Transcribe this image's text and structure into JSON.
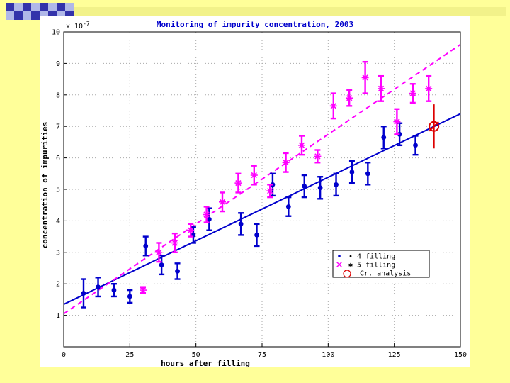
{
  "slide": {
    "background_color": "#ffff99",
    "decoration": "checkered-squares-bar"
  },
  "chart_data": {
    "type": "scatter",
    "title": "Monitoring of impurity concentration, 2003",
    "xlabel": "hours after filling",
    "ylabel": "concentration of impurities",
    "y_multiplier": "x 10^-7",
    "y_multiplier_base": "x 10",
    "y_multiplier_exp": "-7",
    "xlim": [
      0,
      150
    ],
    "ylim": [
      0,
      10
    ],
    "x_ticks": [
      "0",
      "25",
      "50",
      "75",
      "100",
      "125",
      "150"
    ],
    "y_ticks": [
      "1",
      "2",
      "3",
      "4",
      "5",
      "6",
      "7",
      "8",
      "9",
      "10"
    ],
    "grid": true,
    "legend_position": "lower-right",
    "series": [
      {
        "name": "4 filling",
        "legend_label": "•  • 4 filling",
        "color": "#0000cc",
        "marker": "dot",
        "points": [
          {
            "x": 7.5,
            "y": 1.7,
            "err": 0.45
          },
          {
            "x": 13,
            "y": 1.9,
            "err": 0.3
          },
          {
            "x": 19,
            "y": 1.8,
            "err": 0.2
          },
          {
            "x": 25,
            "y": 1.6,
            "err": 0.2
          },
          {
            "x": 31,
            "y": 3.2,
            "err": 0.3
          },
          {
            "x": 37,
            "y": 2.6,
            "err": 0.3
          },
          {
            "x": 43,
            "y": 2.4,
            "err": 0.25
          },
          {
            "x": 49,
            "y": 3.55,
            "err": 0.25
          },
          {
            "x": 55,
            "y": 4.05,
            "err": 0.35
          },
          {
            "x": 67,
            "y": 3.9,
            "err": 0.35
          },
          {
            "x": 73,
            "y": 3.55,
            "err": 0.35
          },
          {
            "x": 79,
            "y": 5.15,
            "err": 0.35
          },
          {
            "x": 85,
            "y": 4.45,
            "err": 0.3
          },
          {
            "x": 91,
            "y": 5.1,
            "err": 0.35
          },
          {
            "x": 97,
            "y": 5.05,
            "err": 0.35
          },
          {
            "x": 103,
            "y": 5.15,
            "err": 0.35
          },
          {
            "x": 109,
            "y": 5.55,
            "err": 0.35
          },
          {
            "x": 115,
            "y": 5.5,
            "err": 0.35
          },
          {
            "x": 121,
            "y": 6.65,
            "err": 0.35
          },
          {
            "x": 127,
            "y": 6.75,
            "err": 0.35
          },
          {
            "x": 133,
            "y": 6.4,
            "err": 0.3
          }
        ],
        "fit_line": {
          "x": [
            0,
            150
          ],
          "y": [
            1.35,
            7.4
          ]
        }
      },
      {
        "name": "5 filling",
        "legend_label": "×  ✱ 5 filling",
        "color": "#ff00ff",
        "marker": "asterisk",
        "points": [
          {
            "x": 30,
            "y": 1.8,
            "err": 0.1
          },
          {
            "x": 36,
            "y": 3.0,
            "err": 0.3
          },
          {
            "x": 42,
            "y": 3.3,
            "err": 0.3
          },
          {
            "x": 48,
            "y": 3.7,
            "err": 0.2
          },
          {
            "x": 54,
            "y": 4.2,
            "err": 0.25
          },
          {
            "x": 60,
            "y": 4.6,
            "err": 0.3
          },
          {
            "x": 66,
            "y": 5.2,
            "err": 0.3
          },
          {
            "x": 72,
            "y": 5.45,
            "err": 0.3
          },
          {
            "x": 78,
            "y": 4.95,
            "err": 0.2
          },
          {
            "x": 84,
            "y": 5.85,
            "err": 0.3
          },
          {
            "x": 90,
            "y": 6.4,
            "err": 0.3
          },
          {
            "x": 96,
            "y": 6.05,
            "err": 0.2
          },
          {
            "x": 102,
            "y": 7.65,
            "err": 0.4
          },
          {
            "x": 108,
            "y": 7.9,
            "err": 0.25
          },
          {
            "x": 114,
            "y": 8.55,
            "err": 0.5
          },
          {
            "x": 120,
            "y": 8.2,
            "err": 0.4
          },
          {
            "x": 126,
            "y": 7.15,
            "err": 0.4
          },
          {
            "x": 132,
            "y": 8.05,
            "err": 0.3
          },
          {
            "x": 138,
            "y": 8.2,
            "err": 0.4
          }
        ],
        "fit_line": {
          "x": [
            0,
            150
          ],
          "y": [
            1.05,
            9.6
          ]
        }
      },
      {
        "name": "Cr. analysis",
        "legend_label": "Cr. analysis",
        "color": "#dd0000",
        "marker": "circle",
        "points": [
          {
            "x": 140,
            "y": 7.0,
            "err": 0.7
          }
        ]
      }
    ]
  }
}
